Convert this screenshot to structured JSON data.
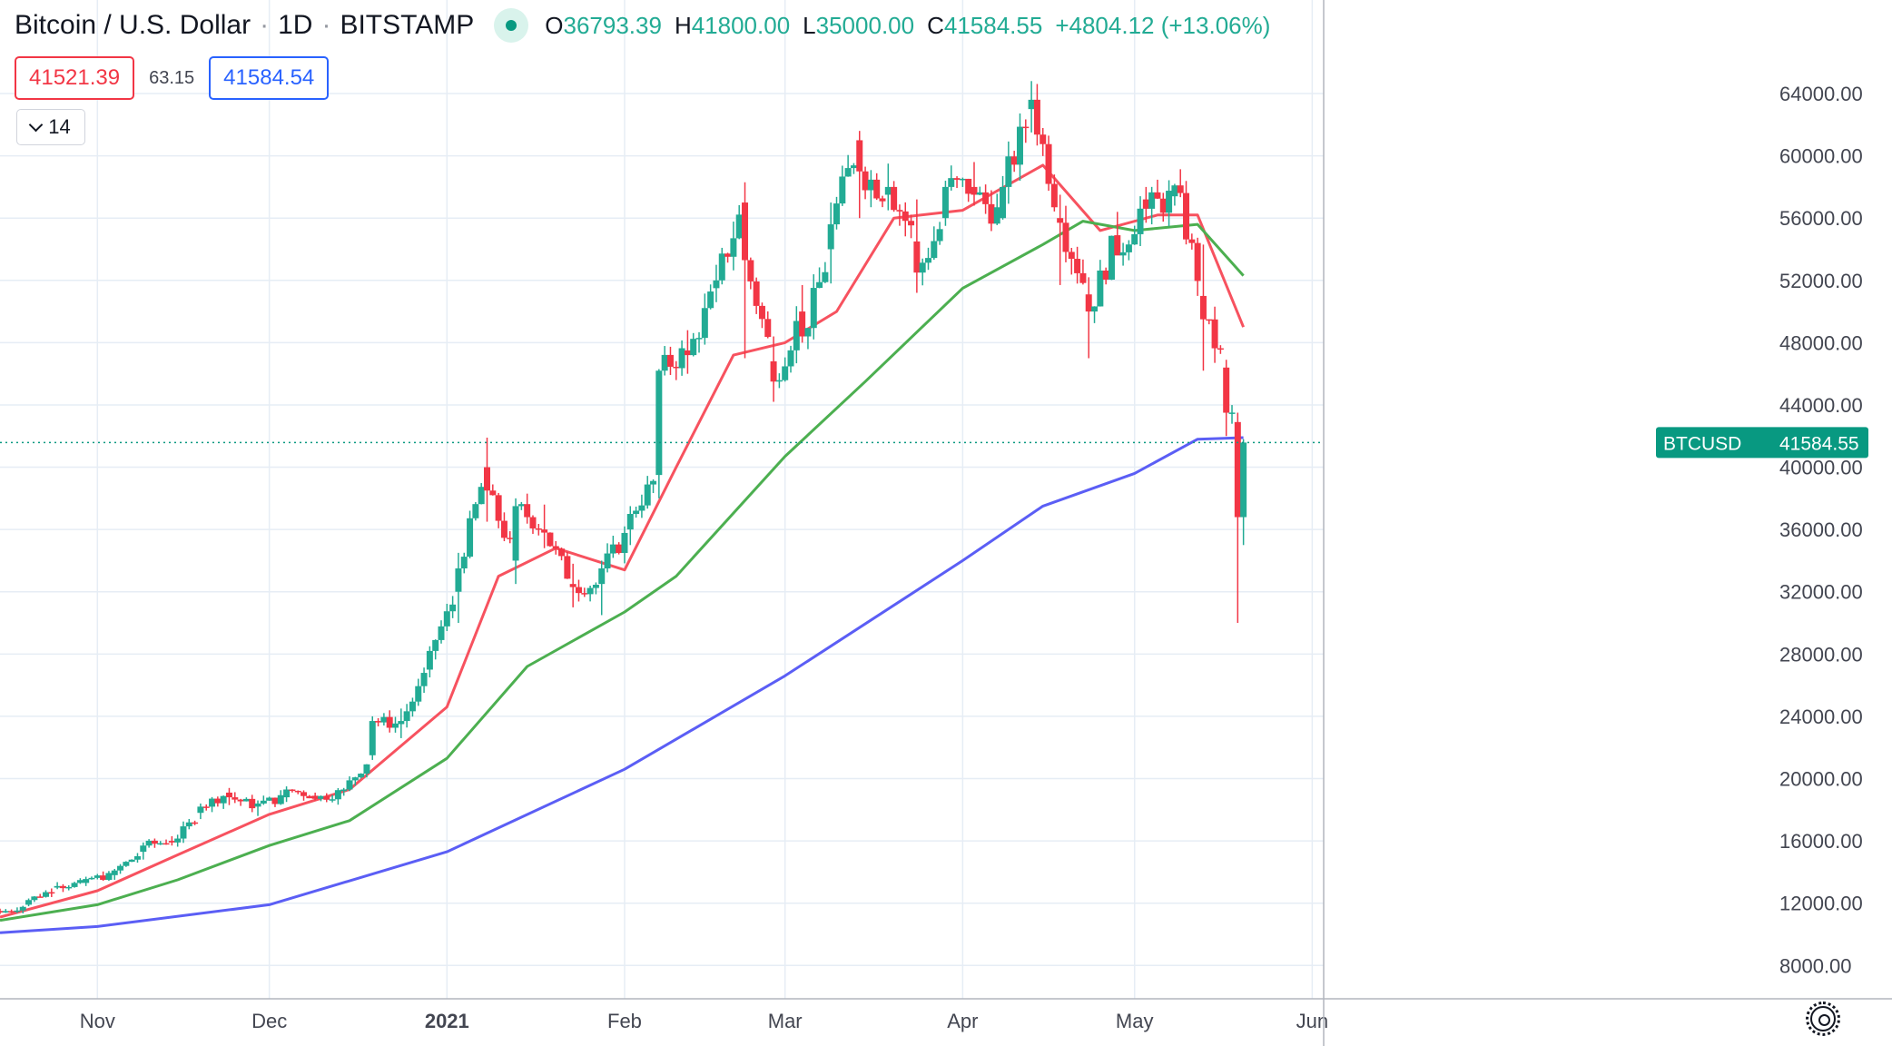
{
  "header": {
    "symbol": "Bitcoin / U.S. Dollar",
    "interval": "1D",
    "exchange": "BITSTAMP",
    "open_label": "O",
    "open": "36793.39",
    "high_label": "H",
    "high": "41800.00",
    "low_label": "L",
    "low": "35000.00",
    "close_label": "C",
    "close": "41584.55",
    "change": "+4804.12 (+13.06%)"
  },
  "trade": {
    "sell_price": "41521.39",
    "spread": "63.15",
    "buy_price": "41584.54"
  },
  "indicators_toggle": {
    "count": "14"
  },
  "colors": {
    "up": "#22ab94",
    "down": "#f23645",
    "ma_fast": "#f7525f",
    "ma_mid": "#4caf50",
    "ma_slow": "#5b5ef5",
    "price_tag": "#089981",
    "grid": "#e6edf5",
    "axis_text": "#434651"
  },
  "icons": {
    "live": "live-dot-icon",
    "intervals": "chevron-down-icon",
    "settings": "gear-icon"
  },
  "chart_data": {
    "type": "candlestick",
    "x_labels": [
      {
        "label": "Nov",
        "date": "2020-11-01"
      },
      {
        "label": "Dec",
        "date": "2020-12-01"
      },
      {
        "label": "2021",
        "date": "2021-01-01"
      },
      {
        "label": "Feb",
        "date": "2021-02-01"
      },
      {
        "label": "Mar",
        "date": "2021-03-01"
      },
      {
        "label": "Apr",
        "date": "2021-04-01"
      },
      {
        "label": "May",
        "date": "2021-05-01"
      },
      {
        "label": "Jun",
        "date": "2021-06-01"
      }
    ],
    "x_range": [
      "2020-10-15",
      "2021-06-03"
    ],
    "y_ticks": [
      "64000.00",
      "60000.00",
      "56000.00",
      "52000.00",
      "48000.00",
      "44000.00",
      "40000.00",
      "36000.00",
      "32000.00",
      "28000.00",
      "24000.00",
      "20000.00",
      "16000.00",
      "12000.00",
      "8000.00"
    ],
    "ylim": [
      7200,
      66800
    ],
    "grid": true,
    "last_price": {
      "label": "BTCUSD",
      "value": "41584.55"
    },
    "ohlc": [
      [
        "2020-10-15",
        11500,
        11650,
        11300,
        11400
      ],
      [
        "2020-10-20",
        11900,
        12300,
        11800,
        12200
      ],
      [
        "2020-10-25",
        13000,
        13350,
        12900,
        13100
      ],
      [
        "2020-10-30",
        13300,
        13700,
        13100,
        13550
      ],
      [
        "2020-11-04",
        13800,
        14200,
        13500,
        14100
      ],
      [
        "2020-11-09",
        15300,
        15900,
        14800,
        15700
      ],
      [
        "2020-11-14",
        16000,
        16300,
        15700,
        15900
      ],
      [
        "2020-11-19",
        17800,
        18400,
        17400,
        18200
      ],
      [
        "2020-11-24",
        19100,
        19400,
        18300,
        18800
      ],
      [
        "2020-11-29",
        18200,
        18600,
        17600,
        18400
      ],
      [
        "2020-12-04",
        18800,
        19500,
        18500,
        19300
      ],
      [
        "2020-12-09",
        18900,
        19100,
        18600,
        18700
      ],
      [
        "2020-12-14",
        19200,
        19400,
        18900,
        19300
      ],
      [
        "2020-12-19",
        21500,
        24000,
        21200,
        23700
      ],
      [
        "2020-12-24",
        23500,
        24500,
        22600,
        23700
      ],
      [
        "2020-12-29",
        27000,
        28500,
        26500,
        28200
      ],
      [
        "2021-01-03",
        32000,
        34500,
        30000,
        33500
      ],
      [
        "2021-01-08",
        40000,
        41900,
        36500,
        38500
      ],
      [
        "2021-01-13",
        34000,
        38000,
        32500,
        37500
      ],
      [
        "2021-01-18",
        36000,
        37600,
        34800,
        35800
      ],
      [
        "2021-01-23",
        32500,
        33800,
        31000,
        32300
      ],
      [
        "2021-01-28",
        32500,
        34000,
        30500,
        33500
      ],
      [
        "2021-02-02",
        36000,
        37500,
        35000,
        37000
      ],
      [
        "2021-02-07",
        39500,
        46300,
        38000,
        46200
      ],
      [
        "2021-02-12",
        47500,
        48800,
        46000,
        47200
      ],
      [
        "2021-02-17",
        51500,
        53000,
        50600,
        52000
      ],
      [
        "2021-02-22",
        57000,
        58300,
        47000,
        53300
      ],
      [
        "2021-02-27",
        46800,
        48400,
        44200,
        45500
      ],
      [
        "2021-03-04",
        50000,
        51700,
        48000,
        48400
      ],
      [
        "2021-03-09",
        54000,
        57000,
        51800,
        55600
      ],
      [
        "2021-03-14",
        61000,
        61600,
        56000,
        59000
      ],
      [
        "2021-03-19",
        57500,
        59500,
        56500,
        58000
      ],
      [
        "2021-03-24",
        54500,
        57200,
        51200,
        52500
      ],
      [
        "2021-03-29",
        56000,
        58400,
        55500,
        58000
      ],
      [
        "2021-04-03",
        58000,
        59600,
        56800,
        57500
      ],
      [
        "2021-04-08",
        56000,
        58700,
        55900,
        58000
      ],
      [
        "2021-04-13",
        63000,
        64800,
        61500,
        63600
      ],
      [
        "2021-04-18",
        56000,
        57500,
        51700,
        55700
      ],
      [
        "2021-04-23",
        51100,
        52200,
        47000,
        50000
      ],
      [
        "2021-04-28",
        54900,
        56400,
        53900,
        53600
      ],
      [
        "2021-05-03",
        57200,
        58000,
        55700,
        56600
      ],
      [
        "2021-05-08",
        57400,
        58200,
        56800,
        58100
      ],
      [
        "2021-05-13",
        51000,
        54300,
        46200,
        49500
      ],
      [
        "2021-05-17",
        46400,
        46900,
        42000,
        43500
      ],
      [
        "2021-05-19",
        42900,
        43500,
        30000,
        36793.39
      ],
      [
        "2021-05-20",
        36793.39,
        41800,
        35000,
        41584.55
      ]
    ],
    "series": [
      {
        "points": [
          [
            "2020-10-15",
            11100
          ],
          [
            "2020-11-01",
            12800
          ],
          [
            "2020-11-15",
            15100
          ],
          [
            "2020-12-01",
            17700
          ],
          [
            "2020-12-15",
            19300
          ],
          [
            "2021-01-01",
            24600
          ],
          [
            "2021-01-10",
            33000
          ],
          [
            "2021-01-20",
            34800
          ],
          [
            "2021-02-01",
            33400
          ],
          [
            "2021-02-10",
            40000
          ],
          [
            "2021-02-20",
            47200
          ],
          [
            "2021-03-01",
            48000
          ],
          [
            "2021-03-10",
            50000
          ],
          [
            "2021-03-20",
            56000
          ],
          [
            "2021-04-01",
            56500
          ],
          [
            "2021-04-15",
            59400
          ],
          [
            "2021-04-25",
            55200
          ],
          [
            "2021-05-05",
            56200
          ],
          [
            "2021-05-12",
            56200
          ],
          [
            "2021-05-20",
            49000
          ]
        ]
      },
      {
        "points": [
          [
            "2020-10-15",
            10900
          ],
          [
            "2020-11-01",
            11900
          ],
          [
            "2020-11-15",
            13500
          ],
          [
            "2020-12-01",
            15700
          ],
          [
            "2020-12-15",
            17300
          ],
          [
            "2021-01-01",
            21300
          ],
          [
            "2021-01-15",
            27200
          ],
          [
            "2021-02-01",
            30700
          ],
          [
            "2021-02-10",
            33000
          ],
          [
            "2021-03-01",
            40700
          ],
          [
            "2021-03-15",
            45500
          ],
          [
            "2021-04-01",
            51500
          ],
          [
            "2021-04-15",
            54300
          ],
          [
            "2021-04-22",
            55800
          ],
          [
            "2021-05-01",
            55200
          ],
          [
            "2021-05-12",
            55600
          ],
          [
            "2021-05-20",
            52300
          ]
        ]
      },
      {
        "points": [
          [
            "2020-10-15",
            10100
          ],
          [
            "2020-11-01",
            10500
          ],
          [
            "2020-12-01",
            11900
          ],
          [
            "2021-01-01",
            15300
          ],
          [
            "2021-02-01",
            20600
          ],
          [
            "2021-03-01",
            26600
          ],
          [
            "2021-04-01",
            34000
          ],
          [
            "2021-04-15",
            37500
          ],
          [
            "2021-05-01",
            39600
          ],
          [
            "2021-05-12",
            41800
          ],
          [
            "2021-05-20",
            41900
          ]
        ]
      }
    ]
  }
}
